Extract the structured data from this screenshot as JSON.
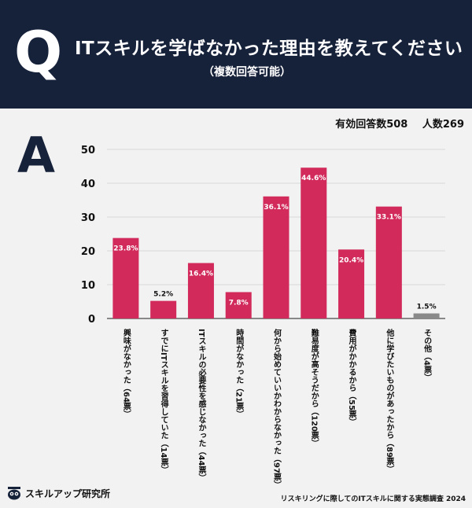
{
  "header": {
    "q_letter": "Q",
    "title": "ITスキルを学ばなかった理由を教えてください",
    "subtitle": "（複数回答可能）"
  },
  "answer_letter": "A",
  "totals": {
    "valid": "有効回答数508",
    "people": "人数269"
  },
  "chart_data": {
    "type": "bar",
    "categories": [
      "興味がなかった（64票）",
      "すでにITスキルを習得していた（14票）",
      "ITスキルの必要性を感じなかった（44票）",
      "時間がなかった（21票）",
      "何から始めていいかわからなかった（97票）",
      "難易度が高そうだから（120票）",
      "費用がかかるから（55票）",
      "他に学びたいものがあったから（89票）",
      "その他（4票）"
    ],
    "values": [
      23.8,
      5.2,
      16.4,
      7.8,
      36.1,
      44.6,
      20.4,
      33.1,
      1.5
    ],
    "labels": [
      "23.8%",
      "5.2%",
      "16.4%",
      "7.8%",
      "36.1%",
      "44.6%",
      "20.4%",
      "33.1%",
      "1.5%"
    ],
    "yticks": [
      0,
      10,
      20,
      30,
      40,
      50
    ],
    "ylim": [
      0,
      50
    ],
    "colors": {
      "bar": "#d12a5b",
      "other": "#8a8a8a",
      "axis": "#999999"
    }
  },
  "footer": {
    "logo": "スキルアップ研究所",
    "source": "リスキリングに際してのITスキルに関する実態調査 2024"
  }
}
